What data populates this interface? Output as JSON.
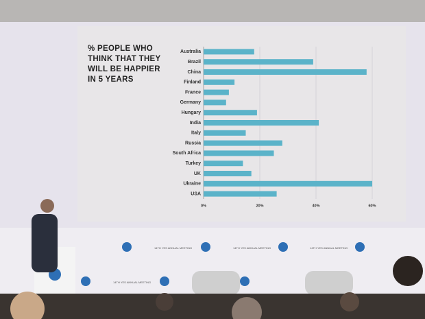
{
  "chart_data": {
    "type": "bar",
    "orientation": "horizontal",
    "title": "% PEOPLE WHO THINK THAT THEY WILL BE HAPPIER IN 5 YEARS",
    "categories": [
      "Australia",
      "Brazil",
      "China",
      "Finland",
      "France",
      "Germany",
      "Hungary",
      "India",
      "Italy",
      "Russia",
      "South Africa",
      "Turkey",
      "UK",
      "Ukraine",
      "USA"
    ],
    "values": [
      18,
      39,
      58,
      11,
      9,
      8,
      19,
      41,
      15,
      28,
      25,
      14,
      17,
      60,
      26
    ],
    "color": "#5bb3c9",
    "xlim": [
      0,
      60
    ],
    "xticks": [
      {
        "value": 0,
        "label": "0%"
      },
      {
        "value": 20,
        "label": "20%"
      },
      {
        "value": 40,
        "label": "40%"
      },
      {
        "value": 60,
        "label": "60%"
      }
    ],
    "grid": true
  },
  "backdrop_text": "14TH YES ANNUAL MEETING"
}
